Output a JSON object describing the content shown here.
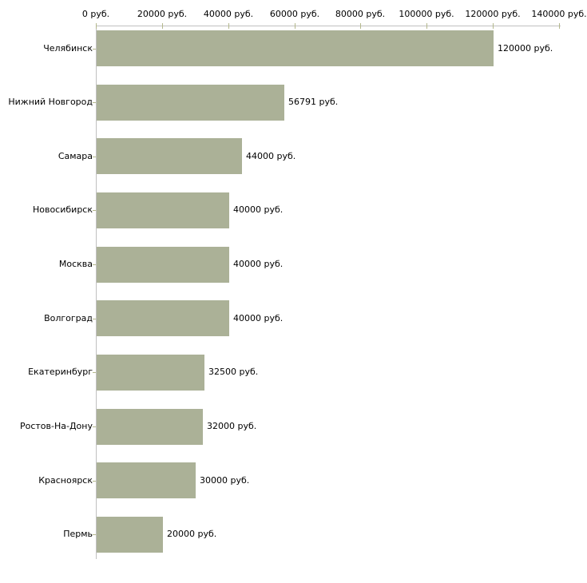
{
  "chart_data": {
    "type": "bar",
    "orientation": "horizontal",
    "title": "",
    "categories": [
      "Челябинск",
      "Нижний Новгород",
      "Самара",
      "Новосибирск",
      "Москва",
      "Волгоград",
      "Екатеринбург",
      "Ростов-На-Дону",
      "Красноярск",
      "Пермь"
    ],
    "values": [
      120000,
      56791,
      44000,
      40000,
      40000,
      40000,
      32500,
      32000,
      30000,
      20000
    ],
    "value_labels": [
      "120000 руб.",
      "56791 руб.",
      "44000 руб.",
      "40000 руб.",
      "40000 руб.",
      "40000 руб.",
      "32500 руб.",
      "32000 руб.",
      "30000 руб.",
      "20000 руб."
    ],
    "x_axis": {
      "position": "top",
      "range": [
        0,
        140000
      ],
      "tick_values": [
        0,
        20000,
        40000,
        60000,
        80000,
        100000,
        120000,
        140000
      ],
      "tick_labels": [
        "0 руб.",
        "20000 руб.",
        "40000 руб.",
        "60000 руб.",
        "80000 руб.",
        "100000 руб.",
        "120000 руб.",
        "140000 руб."
      ]
    },
    "grid": false,
    "legend": false,
    "colors": {
      "bar": "#abb197",
      "axis_line": "#c0c0c0",
      "tick": "#b4b88c",
      "text": "#000000",
      "background": "#ffffff"
    }
  }
}
